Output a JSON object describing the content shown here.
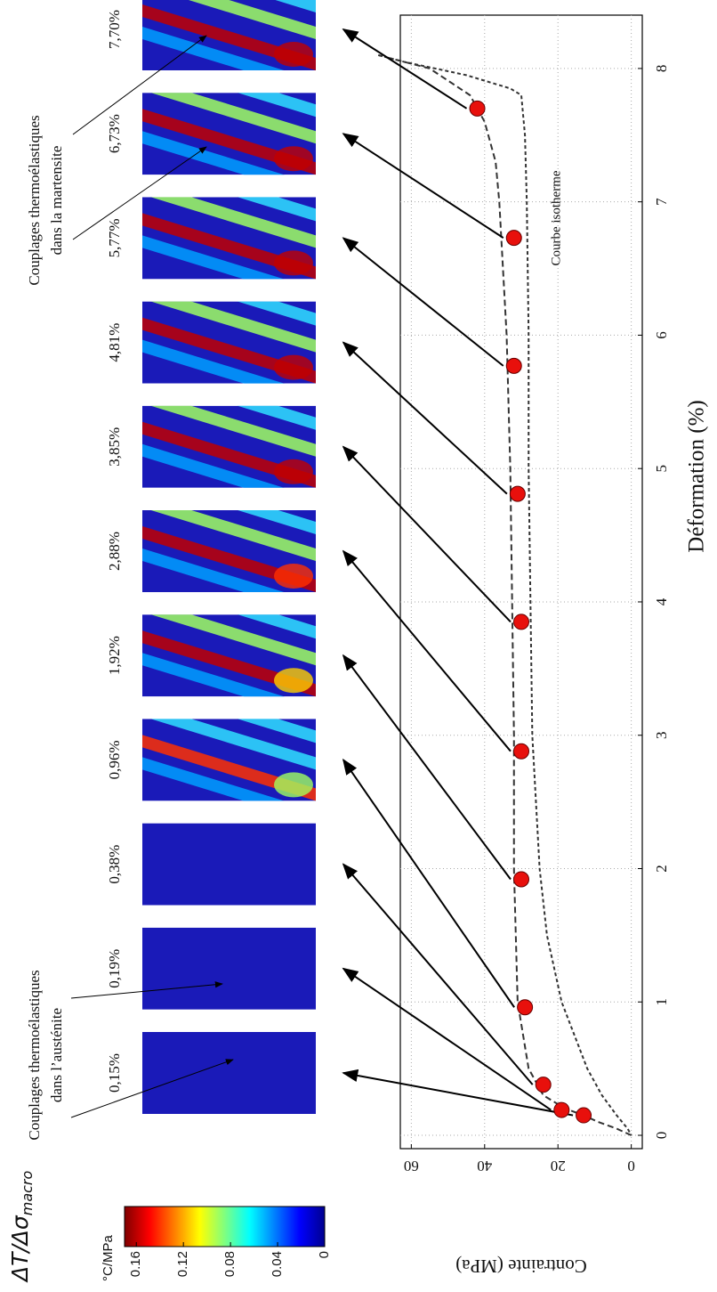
{
  "chart_data": {
    "type": "line",
    "xlabel": "Déformation (%)",
    "ylabel": "Contrainte (MPa)",
    "xlim": [
      -0.1,
      8.4
    ],
    "ylim": [
      -3,
      63
    ],
    "xticks": [
      0,
      1,
      2,
      3,
      4,
      5,
      6,
      7,
      8
    ],
    "yticks": [
      0,
      20,
      40,
      60
    ],
    "grid": true,
    "series": [
      {
        "color": "#333333",
        "x": [
          0,
          0.05,
          0.1,
          0.15,
          0.2,
          0.3,
          0.5,
          1,
          2,
          3,
          4,
          5,
          6,
          6.5,
          7,
          7.3,
          7.6,
          7.8,
          8.0,
          8.1
        ],
        "values": [
          0,
          4,
          9,
          13,
          18,
          24,
          28,
          31,
          32,
          32,
          32.5,
          33,
          34,
          35,
          36,
          37,
          40,
          44,
          55,
          69
        ]
      },
      {
        "color": "#333333",
        "x": [
          8.1,
          8.05,
          7.95,
          7.85,
          7.8,
          7.5,
          7,
          6,
          5,
          4,
          3,
          2,
          1.5,
          1,
          0.5,
          0.3,
          0.15,
          0.05,
          0
        ],
        "values": [
          69,
          62,
          45,
          33,
          30,
          29,
          28.5,
          28,
          28,
          27.5,
          27,
          25,
          23,
          19,
          12,
          8,
          4,
          1,
          0
        ]
      },
      {
        "color": "#e8100c",
        "marker": "circle",
        "x": [
          0.15,
          0.19,
          0.38,
          0.96,
          1.92,
          2.88,
          3.85,
          4.81,
          5.77,
          6.73,
          7.7
        ],
        "x_labels": [
          "0,15%",
          "0,19%",
          "0,38%",
          "0,96%",
          "1,92%",
          "2,88%",
          "3,85%",
          "4,81%",
          "5,77%",
          "6,73%",
          "7,70%"
        ],
        "values": [
          13,
          19,
          24,
          29,
          30,
          30,
          30,
          31,
          32,
          32,
          42
        ]
      }
    ],
    "annotations": [
      {
        "lines": [
          "Couplages thermoélastiques",
          "dans l’austénite"
        ]
      },
      {
        "lines": [
          "Couplages thermoélastiques",
          "dans la martensite"
        ]
      },
      {
        "lines": [
          "Courbe isotherme"
        ]
      }
    ],
    "colorbar": {
      "title": "ΔT/Δσ",
      "title_sub": "macro",
      "unit": "°C/MPa",
      "lim": [
        0,
        0.17
      ],
      "ticks": [
        0,
        0.04,
        0.08,
        0.12,
        0.16
      ]
    }
  }
}
